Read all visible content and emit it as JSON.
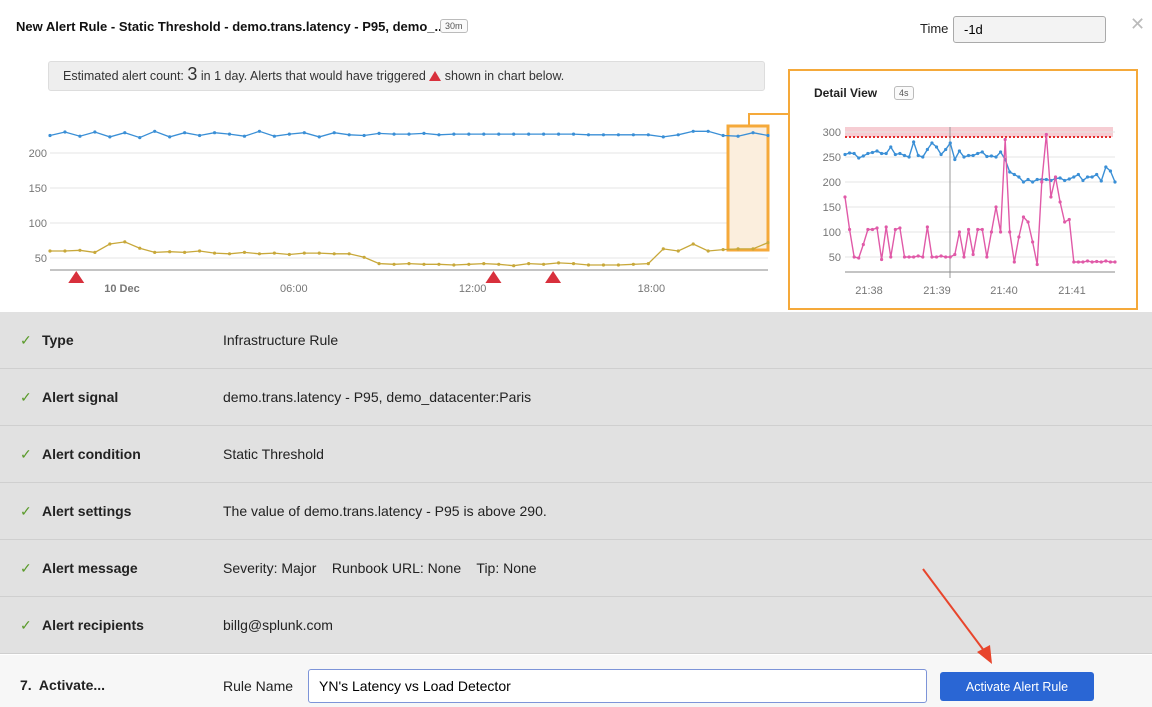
{
  "header": {
    "title": "New Alert Rule - Static Threshold - demo.trans.latency - P95, demo_...",
    "resolution_badge": "30m",
    "time_label": "Time",
    "time_value": "-1d",
    "close_icon": "close-icon"
  },
  "estimate": {
    "prefix": "Estimated alert count:",
    "count": "3",
    "middle": "in 1 day. Alerts that would have triggered",
    "suffix": "shown in chart below."
  },
  "chart_data": [
    {
      "type": "line",
      "start": "9 Dec 21:40",
      "interval": "30m",
      "x_ticks": [
        {
          "label": "10 Dec",
          "time_hours": 0
        },
        {
          "label": "06:00",
          "time_hours": 6
        },
        {
          "label": "12:00",
          "time_hours": 12
        },
        {
          "label": "18:00",
          "time_hours": 18
        }
      ],
      "y_ticks": [
        50,
        100,
        150,
        200
      ],
      "ylim": [
        33,
        240
      ],
      "grid": true,
      "series": [
        {
          "color": "#3a8fd6",
          "values": [
            225,
            230,
            224,
            230,
            223,
            229,
            222,
            231,
            223,
            229,
            225,
            229,
            227,
            224,
            231,
            224,
            227,
            229,
            223,
            229,
            226,
            225,
            228,
            227,
            227,
            228,
            226,
            227,
            227,
            227,
            227,
            227,
            227,
            227,
            227,
            227,
            226,
            226,
            226,
            226,
            226,
            223,
            226,
            231,
            231,
            225,
            224,
            229,
            225
          ]
        },
        {
          "color": "#c8a83a",
          "values": [
            60,
            60,
            61,
            58,
            70,
            73,
            64,
            58,
            59,
            58,
            60,
            57,
            56,
            58,
            56,
            57,
            55,
            57,
            57,
            56,
            56,
            51,
            42,
            41,
            42,
            41,
            41,
            40,
            41,
            42,
            41,
            39,
            42,
            41,
            43,
            42,
            40,
            40,
            40,
            41,
            42,
            63,
            60,
            70,
            60,
            62,
            63,
            63,
            72
          ]
        }
      ],
      "alert_markers_hours": [
        -1.3,
        12.7,
        14.7
      ],
      "alert_marker_color": "#d8303c",
      "detail_window_color": "#f5a93a"
    },
    {
      "type": "line",
      "title": "Detail View",
      "resolution_badge": "4s",
      "start": "21:37:39",
      "interval": "4s",
      "x_ticks": [
        "21:38",
        "21:39",
        "21:40",
        "21:41"
      ],
      "y_ticks": [
        50,
        100,
        150,
        200,
        250,
        300
      ],
      "ylim": [
        20,
        310
      ],
      "threshold": 290,
      "threshold_color": "#e32b2b",
      "grid": true,
      "series": [
        {
          "color": "#3a8fd6",
          "values": [
            255,
            258,
            257,
            248,
            252,
            257,
            259,
            262,
            257,
            257,
            270,
            255,
            257,
            253,
            250,
            280,
            253,
            250,
            265,
            278,
            270,
            255,
            265,
            278,
            245,
            262,
            250,
            253,
            253,
            257,
            260,
            251,
            252,
            250,
            260,
            245,
            220,
            215,
            210,
            200,
            205,
            200,
            205,
            205,
            205,
            203,
            207,
            208,
            203,
            206,
            210,
            215,
            203,
            210,
            210,
            215,
            202,
            230,
            222,
            200
          ]
        },
        {
          "color": "#e05aa8",
          "values": [
            170,
            105,
            50,
            48,
            75,
            105,
            105,
            108,
            45,
            110,
            50,
            105,
            108,
            50,
            50,
            50,
            52,
            50,
            110,
            50,
            50,
            52,
            50,
            50,
            55,
            100,
            50,
            105,
            55,
            105,
            105,
            50,
            100,
            150,
            100,
            285,
            100,
            40,
            90,
            130,
            120,
            80,
            35,
            200,
            295,
            170,
            210,
            160,
            120,
            125,
            40,
            40,
            40,
            42,
            40,
            41,
            40,
            42,
            40,
            40
          ]
        }
      ]
    }
  ],
  "steps": [
    {
      "label": "Type",
      "value": "Infrastructure Rule"
    },
    {
      "label": "Alert signal",
      "value": "demo.trans.latency - P95, demo_datacenter:Paris"
    },
    {
      "label": "Alert condition",
      "value": "Static Threshold"
    },
    {
      "label": "Alert settings",
      "value": "The value of demo.trans.latency - P95 is above 290."
    },
    {
      "label": "Alert message",
      "value": "Severity: Major    Runbook URL: None    Tip: None"
    },
    {
      "label": "Alert recipients",
      "value": "billg@splunk.com"
    }
  ],
  "activate": {
    "step_label": "7.  Activate...",
    "rule_name_label": "Rule Name",
    "rule_name_value": "YN's Latency vs Load Detector",
    "button_label": "Activate Alert Rule",
    "button_color": "#2a66d4"
  },
  "annotation_color": "#e8452c"
}
